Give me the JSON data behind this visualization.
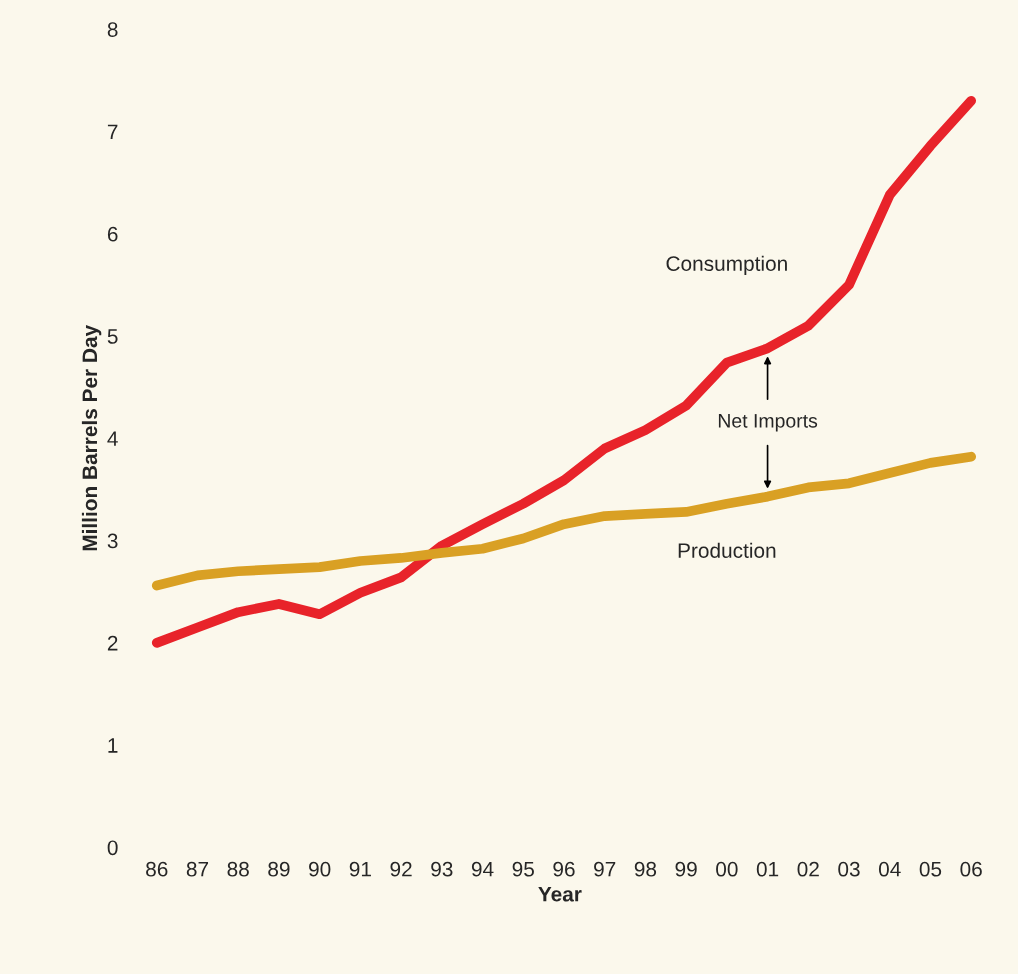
{
  "chart_data": {
    "type": "line",
    "xlabel": "Year",
    "ylabel": "Million Barrels Per Day",
    "categories": [
      "86",
      "87",
      "88",
      "89",
      "90",
      "91",
      "92",
      "93",
      "94",
      "95",
      "96",
      "97",
      "98",
      "99",
      "00",
      "01",
      "02",
      "03",
      "04",
      "05",
      "06"
    ],
    "series": [
      {
        "name": "Consumption",
        "color": "#e8232a",
        "values": [
          2.0,
          2.15,
          2.3,
          2.38,
          2.28,
          2.49,
          2.64,
          2.95,
          3.16,
          3.36,
          3.59,
          3.9,
          4.08,
          4.32,
          4.74,
          4.88,
          5.1,
          5.5,
          6.38,
          6.86,
          7.3
        ]
      },
      {
        "name": "Production",
        "color": "#d9a024",
        "values": [
          2.56,
          2.66,
          2.7,
          2.72,
          2.74,
          2.8,
          2.83,
          2.88,
          2.92,
          3.02,
          3.16,
          3.24,
          3.26,
          3.28,
          3.36,
          3.43,
          3.52,
          3.56,
          3.66,
          3.76,
          3.82
        ]
      }
    ],
    "annotations": [
      "Net Imports"
    ],
    "ylim": [
      0,
      8
    ],
    "yticks": [
      0,
      1,
      2,
      3,
      4,
      5,
      6,
      7,
      8
    ],
    "grid": false,
    "legend": false,
    "marker": "none",
    "line_style": "solid"
  }
}
